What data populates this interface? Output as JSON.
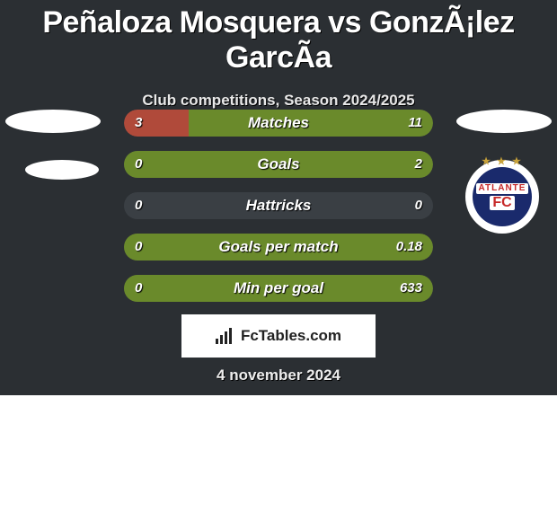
{
  "colors": {
    "card_bg": "#2b2f33",
    "row_bg": "#3a3f44",
    "highlight_green": "#6a8a2b",
    "highlight_red": "#b04a3a",
    "text": "#ffffff"
  },
  "header": {
    "title": "Peñaloza Mosquera vs GonzÃ¡lez GarcÃ­a",
    "subtitle": "Club competitions, Season 2024/2025"
  },
  "players": {
    "left": {
      "name": "Peñaloza Mosquera",
      "club": ""
    },
    "right": {
      "name": "González García",
      "club": "Atlante"
    }
  },
  "right_club_badge": {
    "name": "ATLANTE",
    "fc": "FC",
    "stars": "★ ★ ★"
  },
  "rows": [
    {
      "label": "Matches",
      "left": "3",
      "right": "11",
      "left_pct": 21,
      "left_wins": false
    },
    {
      "label": "Goals",
      "left": "0",
      "right": "2",
      "left_pct": 0,
      "left_wins": false
    },
    {
      "label": "Hattricks",
      "left": "0",
      "right": "0",
      "left_pct": 50,
      "left_wins": null
    },
    {
      "label": "Goals per match",
      "left": "0",
      "right": "0.18",
      "left_pct": 0,
      "left_wins": false
    },
    {
      "label": "Min per goal",
      "left": "0",
      "right": "633",
      "left_pct": 0,
      "left_wins": false
    }
  ],
  "footer": {
    "logo_text": "FcTables.com",
    "date": "4 november 2024"
  }
}
